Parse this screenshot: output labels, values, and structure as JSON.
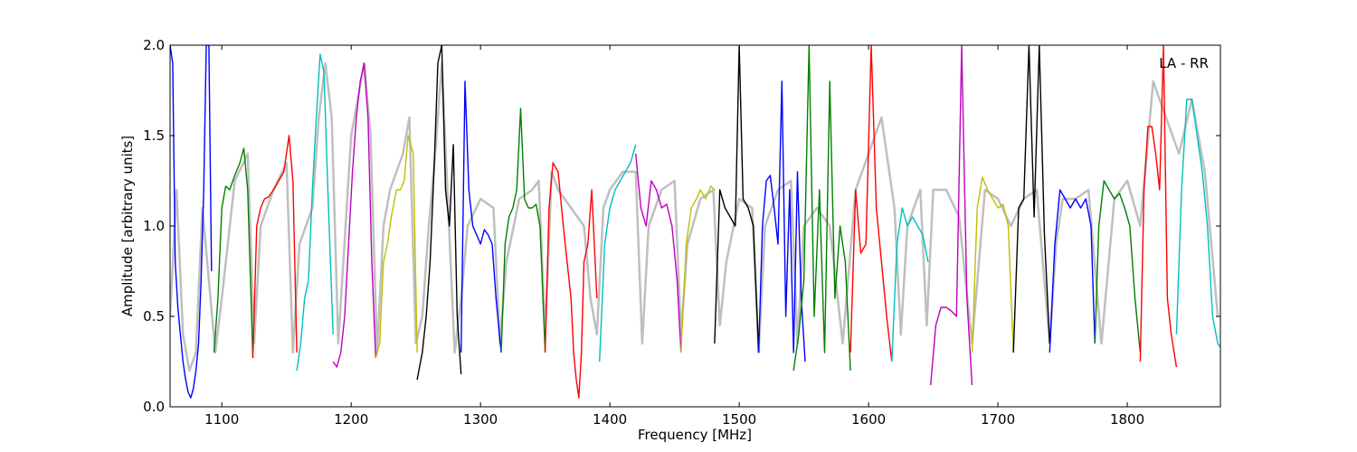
{
  "chart_data": {
    "type": "line",
    "title": "",
    "xlabel": "Frequency [MHz]",
    "ylabel": "Amplitude [arbitrary units]",
    "annotation": "LA - RR",
    "xlim": [
      1060,
      1872
    ],
    "ylim": [
      0.0,
      2.0
    ],
    "x_ticks": [
      1100,
      1200,
      1300,
      1400,
      1500,
      1600,
      1700,
      1800
    ],
    "y_ticks": [
      0.0,
      0.5,
      1.0,
      1.5,
      2.0
    ],
    "x_tick_labels": [
      "1100",
      "1200",
      "1300",
      "1400",
      "1500",
      "1600",
      "1700",
      "1800"
    ],
    "y_tick_labels": [
      "0.0",
      "0.5",
      "1.0",
      "1.5",
      "2.0"
    ],
    "grid": false,
    "background_series": {
      "color": "#bfbfbf",
      "x": [
        1060,
        1065,
        1070,
        1075,
        1080,
        1085,
        1090,
        1095,
        1100,
        1110,
        1120,
        1125,
        1130,
        1140,
        1150,
        1155,
        1160,
        1170,
        1175,
        1180,
        1185,
        1190,
        1200,
        1210,
        1215,
        1220,
        1225,
        1230,
        1240,
        1245,
        1250,
        1255,
        1260,
        1265,
        1270,
        1275,
        1280,
        1285,
        1290,
        1300,
        1310,
        1315,
        1320,
        1330,
        1340,
        1345,
        1350,
        1355,
        1360,
        1370,
        1380,
        1385,
        1390,
        1395,
        1400,
        1410,
        1420,
        1425,
        1430,
        1440,
        1450,
        1455,
        1460,
        1470,
        1480,
        1485,
        1490,
        1500,
        1510,
        1515,
        1520,
        1530,
        1540,
        1545,
        1550,
        1560,
        1570,
        1580,
        1590,
        1600,
        1610,
        1620,
        1625,
        1630,
        1640,
        1645,
        1650,
        1660,
        1670,
        1680,
        1690,
        1700,
        1710,
        1720,
        1730,
        1740,
        1745,
        1750,
        1760,
        1770,
        1780,
        1790,
        1800,
        1810,
        1820,
        1830,
        1840,
        1850,
        1860,
        1870
      ],
      "y": [
        0.5,
        1.2,
        0.4,
        0.2,
        0.3,
        1.1,
        0.7,
        0.3,
        0.6,
        1.25,
        1.4,
        0.35,
        1.0,
        1.2,
        1.35,
        0.3,
        0.9,
        1.1,
        1.6,
        1.9,
        1.6,
        0.35,
        1.5,
        1.9,
        1.5,
        0.3,
        1.0,
        1.2,
        1.4,
        1.6,
        0.35,
        0.5,
        1.0,
        1.4,
        1.9,
        1.1,
        0.3,
        0.6,
        1.0,
        1.15,
        1.1,
        0.35,
        0.8,
        1.15,
        1.2,
        1.25,
        0.4,
        1.3,
        1.2,
        1.1,
        1.0,
        0.6,
        0.4,
        1.1,
        1.2,
        1.3,
        1.3,
        0.35,
        1.0,
        1.2,
        1.25,
        0.4,
        0.9,
        1.15,
        1.2,
        0.45,
        0.8,
        1.15,
        1.1,
        0.3,
        1.0,
        1.2,
        1.25,
        0.35,
        1.0,
        1.1,
        1.0,
        0.35,
        1.2,
        1.4,
        1.6,
        1.1,
        0.4,
        1.0,
        1.2,
        0.45,
        1.2,
        1.2,
        1.05,
        0.35,
        1.2,
        1.15,
        1.0,
        1.15,
        1.2,
        0.35,
        0.9,
        1.15,
        1.15,
        1.2,
        0.35,
        1.15,
        1.25,
        1.0,
        1.8,
        1.6,
        1.4,
        1.7,
        1.3,
        0.5
      ]
    },
    "series": [
      {
        "color": "#0000ff",
        "x": [
          1060,
          1062,
          1064,
          1066,
          1068,
          1070,
          1072,
          1074,
          1076,
          1078,
          1080,
          1082,
          1084,
          1086,
          1088,
          1090,
          1092
        ],
        "y": [
          2.0,
          1.9,
          0.8,
          0.55,
          0.4,
          0.25,
          0.15,
          0.08,
          0.05,
          0.1,
          0.2,
          0.35,
          0.7,
          1.2,
          2.0,
          2.0,
          0.75
        ]
      },
      {
        "color": "#008000",
        "x": [
          1094,
          1097,
          1100,
          1103,
          1106,
          1110,
          1114,
          1117,
          1120,
          1124
        ],
        "y": [
          0.3,
          0.6,
          1.1,
          1.22,
          1.2,
          1.28,
          1.35,
          1.43,
          1.2,
          0.27
        ]
      },
      {
        "color": "#ff0000",
        "x": [
          1124,
          1127,
          1130,
          1133,
          1136,
          1140,
          1144,
          1148,
          1152,
          1155,
          1158
        ],
        "y": [
          0.27,
          1.0,
          1.1,
          1.15,
          1.16,
          1.2,
          1.25,
          1.3,
          1.5,
          1.25,
          0.3
        ]
      },
      {
        "color": "#00bfbf",
        "x": [
          1158,
          1161,
          1164,
          1167,
          1170,
          1173,
          1176,
          1179,
          1182,
          1186
        ],
        "y": [
          0.2,
          0.35,
          0.6,
          0.7,
          1.2,
          1.6,
          1.95,
          1.85,
          1.2,
          0.4
        ]
      },
      {
        "color": "#bf00bf",
        "x": [
          1186,
          1189,
          1192,
          1195,
          1198,
          1201,
          1204,
          1207,
          1210,
          1213,
          1216,
          1219
        ],
        "y": [
          0.25,
          0.22,
          0.3,
          0.5,
          0.9,
          1.3,
          1.6,
          1.8,
          1.9,
          1.6,
          0.8,
          0.27
        ]
      },
      {
        "color": "#bfbf00",
        "x": [
          1219,
          1222,
          1225,
          1228,
          1231,
          1235,
          1238,
          1241,
          1244,
          1248,
          1251
        ],
        "y": [
          0.27,
          0.35,
          0.8,
          0.9,
          1.05,
          1.2,
          1.2,
          1.25,
          1.5,
          1.4,
          0.3
        ]
      },
      {
        "color": "#000000",
        "x": [
          1251,
          1255,
          1258,
          1261,
          1264,
          1267,
          1270,
          1273,
          1276,
          1279,
          1282,
          1285
        ],
        "y": [
          0.15,
          0.3,
          0.5,
          0.8,
          1.3,
          1.9,
          2.0,
          1.2,
          1.0,
          1.45,
          0.5,
          0.18
        ]
      },
      {
        "color": "#0000ff",
        "x": [
          1285,
          1288,
          1291,
          1294,
          1297,
          1300,
          1303,
          1306,
          1309,
          1312,
          1316
        ],
        "y": [
          0.3,
          1.8,
          1.2,
          1.0,
          0.95,
          0.9,
          0.98,
          0.95,
          0.9,
          0.6,
          0.3
        ]
      },
      {
        "color": "#008000",
        "x": [
          1316,
          1319,
          1322,
          1325,
          1328,
          1331,
          1334,
          1337,
          1340,
          1343,
          1346,
          1350
        ],
        "y": [
          0.3,
          0.9,
          1.05,
          1.1,
          1.2,
          1.65,
          1.15,
          1.1,
          1.1,
          1.12,
          1.0,
          0.3
        ]
      },
      {
        "color": "#ff0000",
        "x": [
          1350,
          1353,
          1356,
          1360,
          1364,
          1367,
          1370,
          1372,
          1374,
          1376,
          1378,
          1380,
          1383,
          1386,
          1390
        ],
        "y": [
          0.3,
          1.1,
          1.35,
          1.3,
          1.0,
          0.8,
          0.6,
          0.3,
          0.15,
          0.05,
          0.3,
          0.8,
          0.9,
          1.2,
          0.6
        ]
      },
      {
        "color": "#00bfbf",
        "x": [
          1392,
          1396,
          1400,
          1404,
          1408,
          1412,
          1416,
          1420
        ],
        "y": [
          0.25,
          0.9,
          1.1,
          1.2,
          1.25,
          1.3,
          1.35,
          1.45
        ]
      },
      {
        "color": "#bf00bf",
        "x": [
          1420,
          1424,
          1428,
          1432,
          1436,
          1440,
          1444,
          1448,
          1452,
          1455
        ],
        "y": [
          1.4,
          1.1,
          1.0,
          1.25,
          1.2,
          1.1,
          1.12,
          1.0,
          0.7,
          0.3
        ]
      },
      {
        "color": "#bfbf00",
        "x": [
          1455,
          1459,
          1463,
          1467,
          1470,
          1474,
          1478,
          1481
        ],
        "y": [
          0.3,
          0.9,
          1.1,
          1.15,
          1.2,
          1.15,
          1.22,
          1.2
        ]
      },
      {
        "color": "#000000",
        "x": [
          1481,
          1485,
          1489,
          1493,
          1497,
          1500,
          1503,
          1507,
          1511,
          1515
        ],
        "y": [
          0.35,
          1.2,
          1.1,
          1.05,
          1.0,
          2.0,
          1.15,
          1.1,
          1.0,
          0.3
        ]
      },
      {
        "color": "#0000ff",
        "x": [
          1515,
          1518,
          1521,
          1524,
          1527,
          1530,
          1533,
          1536,
          1539,
          1542,
          1545,
          1548,
          1551
        ],
        "y": [
          0.3,
          1.0,
          1.25,
          1.28,
          1.1,
          0.9,
          1.8,
          0.5,
          1.2,
          0.3,
          1.3,
          0.6,
          0.25
        ]
      },
      {
        "color": "#008000",
        "x": [
          1542,
          1546,
          1550,
          1554,
          1558,
          1562,
          1566,
          1570,
          1574,
          1578,
          1582,
          1586
        ],
        "y": [
          0.2,
          0.4,
          0.7,
          2.0,
          0.5,
          1.2,
          0.3,
          1.8,
          0.6,
          1.0,
          0.8,
          0.2
        ]
      },
      {
        "color": "#ff0000",
        "x": [
          1586,
          1590,
          1594,
          1598,
          1602,
          1606,
          1610,
          1614,
          1618
        ],
        "y": [
          0.3,
          1.2,
          0.85,
          0.9,
          2.0,
          1.1,
          0.8,
          0.5,
          0.25
        ]
      },
      {
        "color": "#00bfbf",
        "x": [
          1618,
          1622,
          1626,
          1630,
          1634,
          1638,
          1642,
          1646
        ],
        "y": [
          0.25,
          0.9,
          1.1,
          1.0,
          1.05,
          1.0,
          0.95,
          0.8
        ]
      },
      {
        "color": "#bf00bf",
        "x": [
          1648,
          1652,
          1656,
          1660,
          1664,
          1668,
          1672,
          1676,
          1680
        ],
        "y": [
          0.12,
          0.45,
          0.55,
          0.55,
          0.53,
          0.5,
          2.0,
          0.6,
          0.12
        ]
      },
      {
        "color": "#bfbf00",
        "x": [
          1680,
          1684,
          1688,
          1692,
          1696,
          1700,
          1704,
          1708,
          1712
        ],
        "y": [
          0.3,
          1.1,
          1.27,
          1.2,
          1.15,
          1.1,
          1.12,
          1.0,
          0.3
        ]
      },
      {
        "color": "#000000",
        "x": [
          1712,
          1716,
          1720,
          1724,
          1728,
          1732,
          1736,
          1740
        ],
        "y": [
          0.3,
          1.1,
          1.15,
          2.0,
          1.05,
          2.0,
          0.95,
          0.35
        ]
      },
      {
        "color": "#0000ff",
        "x": [
          1740,
          1744,
          1748,
          1752,
          1756,
          1760,
          1764,
          1768,
          1772,
          1775
        ],
        "y": [
          0.3,
          0.9,
          1.2,
          1.15,
          1.1,
          1.15,
          1.1,
          1.15,
          1.0,
          0.35
        ]
      },
      {
        "color": "#008000",
        "x": [
          1775,
          1778,
          1782,
          1786,
          1790,
          1794,
          1798,
          1802,
          1806,
          1810
        ],
        "y": [
          0.35,
          1.0,
          1.25,
          1.2,
          1.15,
          1.18,
          1.1,
          1.0,
          0.6,
          0.3
        ]
      },
      {
        "color": "#ff0000",
        "x": [
          1810,
          1813,
          1816,
          1819,
          1822,
          1825,
          1828,
          1831,
          1834,
          1838
        ],
        "y": [
          0.25,
          1.2,
          1.55,
          1.55,
          1.4,
          1.2,
          2.0,
          0.6,
          0.4,
          0.22
        ]
      },
      {
        "color": "#00bfbf",
        "x": [
          1838,
          1842,
          1846,
          1850,
          1854,
          1858,
          1862,
          1866,
          1870,
          1872
        ],
        "y": [
          0.4,
          1.2,
          1.7,
          1.7,
          1.5,
          1.3,
          1.0,
          0.5,
          0.35,
          0.33
        ]
      }
    ]
  }
}
